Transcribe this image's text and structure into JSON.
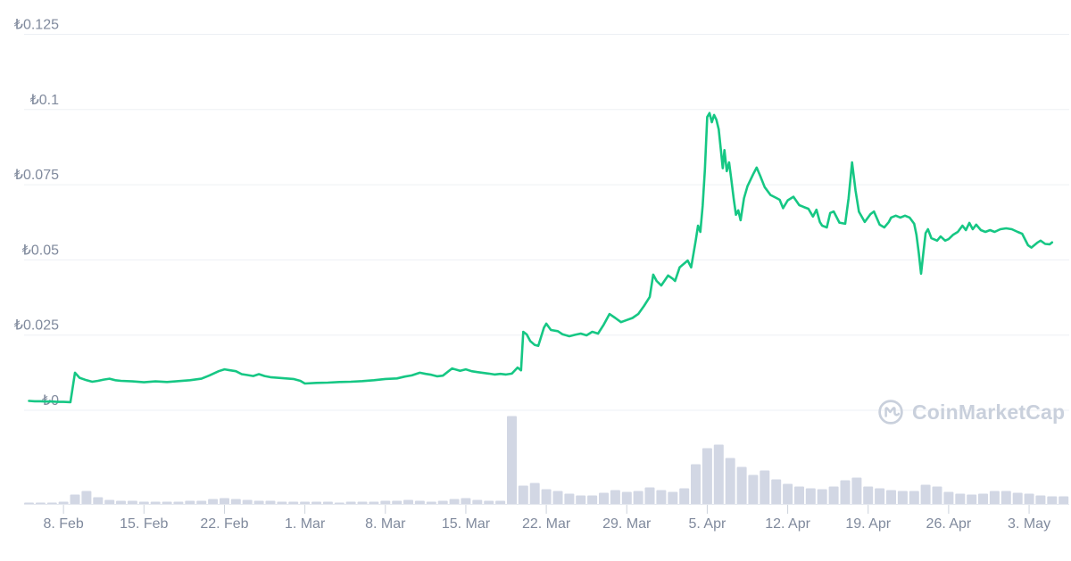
{
  "watermark": {
    "label": "CoinMarketCap"
  },
  "colors": {
    "price_line": "#16C784",
    "volume_bar": "#D2D7E4",
    "grid": "#EDF0F4",
    "axis_line": "#E3E7EE",
    "tick": "#CCD2DC",
    "label_text": "#808A9D",
    "watermark": "#C9D0DC",
    "background": "#FFFFFF"
  },
  "chart_data": {
    "type": "line",
    "title": "",
    "xlabel": "",
    "ylabel": "",
    "currency_symbol": "₺",
    "x_unit": "day offset from 5 Feb (0 = 5 Feb, 89 = 5 May)",
    "y_range": [
      0,
      0.13
    ],
    "grid": "horizontal-only",
    "y_axis": {
      "ticks": [
        {
          "value": 0,
          "label": "₺0"
        },
        {
          "value": 0.025,
          "label": "₺0.025"
        },
        {
          "value": 0.05,
          "label": "₺0.05"
        },
        {
          "value": 0.075,
          "label": "₺0.075"
        },
        {
          "value": 0.1,
          "label": "₺0.1"
        },
        {
          "value": 0.125,
          "label": "₺0.125"
        }
      ]
    },
    "x_axis": {
      "ticks": [
        {
          "day": 3,
          "label": "8. Feb"
        },
        {
          "day": 10,
          "label": "15. Feb"
        },
        {
          "day": 17,
          "label": "22. Feb"
        },
        {
          "day": 24,
          "label": "1. Mar"
        },
        {
          "day": 31,
          "label": "8. Mar"
        },
        {
          "day": 38,
          "label": "15. Mar"
        },
        {
          "day": 45,
          "label": "22. Mar"
        },
        {
          "day": 52,
          "label": "29. Mar"
        },
        {
          "day": 59,
          "label": "5. Apr"
        },
        {
          "day": 66,
          "label": "12. Apr"
        },
        {
          "day": 73,
          "label": "19. Apr"
        },
        {
          "day": 80,
          "label": "26. Apr"
        },
        {
          "day": 87,
          "label": "3. May"
        }
      ]
    },
    "price_series": {
      "name": "Price (TRY)",
      "color": "#16C784",
      "points": [
        [
          0,
          0.0031
        ],
        [
          0.5,
          0.003
        ],
        [
          1,
          0.003
        ],
        [
          1.5,
          0.0029
        ],
        [
          2,
          0.0029
        ],
        [
          2.5,
          0.0028
        ],
        [
          3,
          0.0028
        ],
        [
          3.6,
          0.0027
        ],
        [
          4,
          0.0125
        ],
        [
          4.4,
          0.0108
        ],
        [
          5,
          0.01
        ],
        [
          5.5,
          0.0095
        ],
        [
          6,
          0.0098
        ],
        [
          6.5,
          0.0102
        ],
        [
          7,
          0.0105
        ],
        [
          7.5,
          0.01
        ],
        [
          8,
          0.0098
        ],
        [
          9,
          0.0096
        ],
        [
          10,
          0.0093
        ],
        [
          11,
          0.0096
        ],
        [
          12,
          0.0094
        ],
        [
          13,
          0.0097
        ],
        [
          14,
          0.01
        ],
        [
          15,
          0.0105
        ],
        [
          15.7,
          0.0116
        ],
        [
          16.5,
          0.013
        ],
        [
          17,
          0.0136
        ],
        [
          17.5,
          0.0133
        ],
        [
          18,
          0.013
        ],
        [
          18.5,
          0.012
        ],
        [
          19,
          0.0117
        ],
        [
          19.5,
          0.0114
        ],
        [
          20,
          0.012
        ],
        [
          20.5,
          0.0114
        ],
        [
          21,
          0.011
        ],
        [
          22,
          0.0107
        ],
        [
          23,
          0.0104
        ],
        [
          23.6,
          0.0098
        ],
        [
          24,
          0.0089
        ],
        [
          25,
          0.0091
        ],
        [
          26,
          0.0092
        ],
        [
          27,
          0.0094
        ],
        [
          28,
          0.0095
        ],
        [
          29,
          0.0097
        ],
        [
          30,
          0.01
        ],
        [
          31,
          0.0104
        ],
        [
          32,
          0.0106
        ],
        [
          32.7,
          0.0112
        ],
        [
          33.3,
          0.0116
        ],
        [
          34,
          0.0125
        ],
        [
          34.5,
          0.0121
        ],
        [
          35,
          0.0118
        ],
        [
          35.5,
          0.0113
        ],
        [
          36,
          0.0115
        ],
        [
          36.8,
          0.0139
        ],
        [
          37.5,
          0.0131
        ],
        [
          38,
          0.0136
        ],
        [
          38.5,
          0.013
        ],
        [
          39,
          0.0127
        ],
        [
          40,
          0.0122
        ],
        [
          40.5,
          0.0119
        ],
        [
          41,
          0.0121
        ],
        [
          41.5,
          0.0119
        ],
        [
          42,
          0.0122
        ],
        [
          42.5,
          0.0142
        ],
        [
          42.8,
          0.0133
        ],
        [
          43,
          0.0261
        ],
        [
          43.3,
          0.0252
        ],
        [
          43.6,
          0.023
        ],
        [
          44,
          0.0217
        ],
        [
          44.3,
          0.0214
        ],
        [
          44.8,
          0.0275
        ],
        [
          45,
          0.0288
        ],
        [
          45.4,
          0.0267
        ],
        [
          46,
          0.0263
        ],
        [
          46.4,
          0.0253
        ],
        [
          47,
          0.0246
        ],
        [
          47.5,
          0.0251
        ],
        [
          48,
          0.0255
        ],
        [
          48.5,
          0.0249
        ],
        [
          49,
          0.0261
        ],
        [
          49.5,
          0.0255
        ],
        [
          50,
          0.0285
        ],
        [
          50.5,
          0.032
        ],
        [
          51,
          0.0307
        ],
        [
          51.5,
          0.0293
        ],
        [
          52,
          0.03
        ],
        [
          52.5,
          0.0307
        ],
        [
          53,
          0.032
        ],
        [
          53.5,
          0.0347
        ],
        [
          54,
          0.0377
        ],
        [
          54.3,
          0.0451
        ],
        [
          54.6,
          0.043
        ],
        [
          55,
          0.0415
        ],
        [
          55.6,
          0.0448
        ],
        [
          56,
          0.0437
        ],
        [
          56.2,
          0.043
        ],
        [
          56.6,
          0.0475
        ],
        [
          57,
          0.0488
        ],
        [
          57.3,
          0.0498
        ],
        [
          57.6,
          0.0475
        ],
        [
          58,
          0.0564
        ],
        [
          58.2,
          0.0614
        ],
        [
          58.4,
          0.0593
        ],
        [
          58.6,
          0.068
        ],
        [
          58.8,
          0.08
        ],
        [
          59,
          0.0975
        ],
        [
          59.2,
          0.0988
        ],
        [
          59.4,
          0.0958
        ],
        [
          59.6,
          0.0982
        ],
        [
          59.8,
          0.0966
        ],
        [
          60,
          0.0934
        ],
        [
          60.2,
          0.086
        ],
        [
          60.35,
          0.0805
        ],
        [
          60.5,
          0.0865
        ],
        [
          60.7,
          0.0795
        ],
        [
          60.9,
          0.0824
        ],
        [
          61.1,
          0.0765
        ],
        [
          61.3,
          0.0705
        ],
        [
          61.5,
          0.065
        ],
        [
          61.7,
          0.0665
        ],
        [
          61.9,
          0.0632
        ],
        [
          62.2,
          0.0705
        ],
        [
          62.5,
          0.0745
        ],
        [
          63,
          0.0785
        ],
        [
          63.3,
          0.0807
        ],
        [
          63.6,
          0.078
        ],
        [
          64,
          0.0742
        ],
        [
          64.5,
          0.0716
        ],
        [
          65,
          0.0706
        ],
        [
          65.3,
          0.07
        ],
        [
          65.6,
          0.0672
        ],
        [
          66,
          0.0698
        ],
        [
          66.5,
          0.071
        ],
        [
          67,
          0.0682
        ],
        [
          67.4,
          0.0676
        ],
        [
          67.8,
          0.067
        ],
        [
          68.2,
          0.0644
        ],
        [
          68.5,
          0.0667
        ],
        [
          68.8,
          0.0626
        ],
        [
          69,
          0.0614
        ],
        [
          69.4,
          0.0608
        ],
        [
          69.7,
          0.0656
        ],
        [
          70,
          0.0661
        ],
        [
          70.5,
          0.0624
        ],
        [
          71,
          0.062
        ],
        [
          71.3,
          0.0705
        ],
        [
          71.6,
          0.0824
        ],
        [
          71.9,
          0.073
        ],
        [
          72.2,
          0.066
        ],
        [
          72.7,
          0.0626
        ],
        [
          73.2,
          0.0652
        ],
        [
          73.5,
          0.0661
        ],
        [
          74,
          0.0617
        ],
        [
          74.4,
          0.0608
        ],
        [
          74.8,
          0.0626
        ],
        [
          75,
          0.0641
        ],
        [
          75.4,
          0.0647
        ],
        [
          75.8,
          0.0641
        ],
        [
          76.2,
          0.0647
        ],
        [
          76.6,
          0.0641
        ],
        [
          77,
          0.062
        ],
        [
          77.2,
          0.0584
        ],
        [
          77.4,
          0.0524
        ],
        [
          77.6,
          0.0454
        ],
        [
          77.8,
          0.0524
        ],
        [
          78,
          0.0589
        ],
        [
          78.2,
          0.0602
        ],
        [
          78.5,
          0.0572
        ],
        [
          79,
          0.0564
        ],
        [
          79.3,
          0.0578
        ],
        [
          79.7,
          0.0564
        ],
        [
          80,
          0.0569
        ],
        [
          80.4,
          0.0584
        ],
        [
          80.8,
          0.0593
        ],
        [
          81.2,
          0.0614
        ],
        [
          81.5,
          0.0599
        ],
        [
          81.8,
          0.0623
        ],
        [
          82.1,
          0.0602
        ],
        [
          82.4,
          0.0617
        ],
        [
          82.8,
          0.0599
        ],
        [
          83.2,
          0.0593
        ],
        [
          83.6,
          0.0599
        ],
        [
          84,
          0.0593
        ],
        [
          84.5,
          0.0602
        ],
        [
          85,
          0.0605
        ],
        [
          85.5,
          0.0602
        ],
        [
          86,
          0.0593
        ],
        [
          86.4,
          0.0587
        ],
        [
          86.9,
          0.0549
        ],
        [
          87.2,
          0.0541
        ],
        [
          87.7,
          0.0557
        ],
        [
          88,
          0.0564
        ],
        [
          88.4,
          0.0553
        ],
        [
          88.8,
          0.0552
        ],
        [
          89,
          0.0558
        ]
      ]
    },
    "volume_series": {
      "name": "Volume",
      "type": "bar",
      "color": "#D2D7E4",
      "unit": "relative height 0-100 (no volume axis labels shown in chart)",
      "values": [
        2,
        2,
        2,
        3,
        11,
        15,
        8,
        5,
        4,
        4,
        3,
        3,
        3,
        3,
        4,
        4,
        6,
        7,
        6,
        5,
        4,
        4,
        3,
        3,
        3,
        3,
        3,
        2,
        3,
        3,
        3,
        4,
        4,
        5,
        4,
        3,
        4,
        6,
        7,
        5,
        4,
        4,
        99,
        21,
        24,
        17,
        15,
        12,
        10,
        10,
        13,
        16,
        14,
        15,
        19,
        16,
        14,
        18,
        45,
        63,
        67,
        52,
        42,
        33,
        38,
        28,
        23,
        20,
        18,
        17,
        20,
        27,
        30,
        20,
        18,
        16,
        15,
        15,
        22,
        20,
        14,
        12,
        11,
        12,
        15,
        15,
        13,
        12,
        10,
        9,
        9
      ]
    }
  }
}
